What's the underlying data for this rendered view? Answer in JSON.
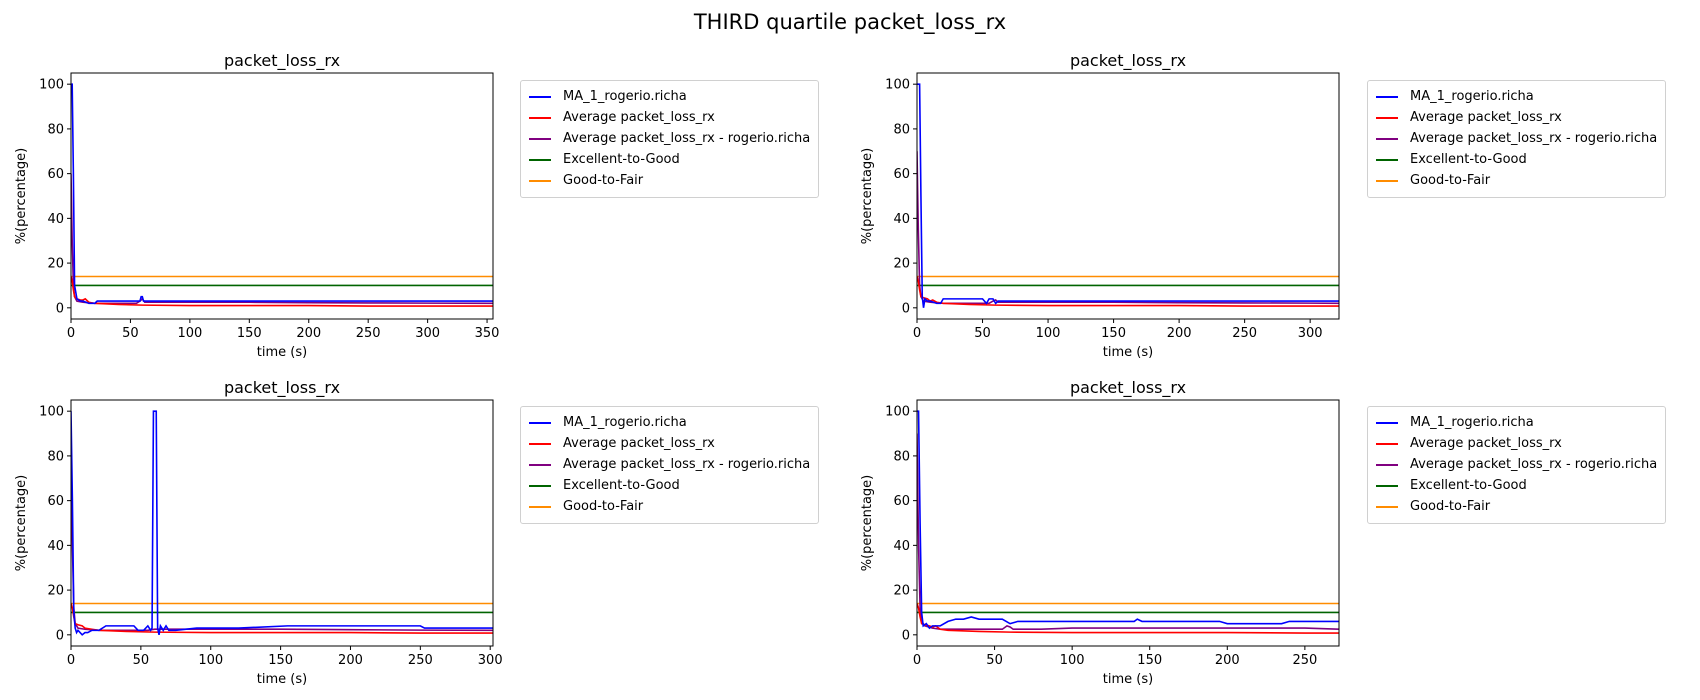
{
  "suptitle": "THIRD quartile packet_loss_rx",
  "legend_entries": [
    {
      "label": "MA_1_rogerio.richa",
      "color": "#0000ff"
    },
    {
      "label": "Average packet_loss_rx",
      "color": "#ff0000"
    },
    {
      "label": "Average packet_loss_rx - rogerio.richa",
      "color": "#800080"
    },
    {
      "label": "Excellent-to-Good",
      "color": "#006400"
    },
    {
      "label": "Good-to-Fair",
      "color": "#ff8c00"
    }
  ],
  "chart_data": [
    {
      "type": "line",
      "title": "packet_loss_rx",
      "xlabel": "time (s)",
      "ylabel": "%(percentage)",
      "xlim": [
        0,
        355
      ],
      "ylim": [
        -5,
        105
      ],
      "xticks": [
        0,
        50,
        100,
        150,
        200,
        250,
        300,
        350
      ],
      "yticks": [
        0,
        20,
        40,
        60,
        80,
        100
      ],
      "grid": false,
      "legend_placement": "outside-right",
      "series": [
        {
          "name": "MA_1_rogerio.richa",
          "color": "#0000ff",
          "x": [
            0,
            1,
            2,
            3,
            5,
            8,
            10,
            15,
            20,
            22,
            30,
            50,
            58,
            59,
            60,
            61,
            63,
            100,
            150,
            200,
            250,
            300,
            355
          ],
          "y": [
            100,
            100,
            60,
            10,
            4,
            3,
            3,
            2,
            2,
            3,
            3,
            3,
            3,
            5,
            5,
            3,
            3,
            3,
            3,
            3,
            3,
            3,
            3
          ]
        },
        {
          "name": "Average packet_loss_rx",
          "color": "#ff0000",
          "x": [
            0,
            1,
            2,
            3,
            5,
            8,
            10,
            12,
            15,
            20,
            40,
            60,
            100,
            150,
            200,
            250,
            300,
            355
          ],
          "y": [
            14,
            12,
            8,
            5,
            4,
            3.5,
            3.5,
            4,
            2.5,
            2,
            1.5,
            1.2,
            1,
            1,
            1,
            0.8,
            0.8,
            0.8
          ]
        },
        {
          "name": "Average packet_loss_rx - rogerio.richa",
          "color": "#800080",
          "x": [
            0,
            1,
            2,
            3,
            5,
            10,
            20,
            40,
            55,
            58,
            60,
            62,
            80,
            100,
            150,
            200,
            250,
            300,
            355
          ],
          "y": [
            60,
            30,
            10,
            5,
            3,
            2.5,
            2,
            2,
            2,
            3,
            4,
            2.5,
            2.5,
            2.5,
            2.5,
            2.3,
            2.2,
            2.1,
            2
          ]
        }
      ],
      "thresholds": [
        {
          "name": "Excellent-to-Good",
          "color": "#006400",
          "y": 10
        },
        {
          "name": "Good-to-Fair",
          "color": "#ff8c00",
          "y": 14
        }
      ]
    },
    {
      "type": "line",
      "title": "packet_loss_rx",
      "xlabel": "time (s)",
      "ylabel": "%(percentage)",
      "xlim": [
        0,
        322
      ],
      "ylim": [
        -5,
        105
      ],
      "xticks": [
        0,
        50,
        100,
        150,
        200,
        250,
        300
      ],
      "yticks": [
        0,
        20,
        40,
        60,
        80,
        100
      ],
      "grid": false,
      "legend_placement": "outside-right",
      "series": [
        {
          "name": "MA_1_rogerio.richa",
          "color": "#0000ff",
          "x": [
            0,
            2,
            3,
            4,
            5,
            6,
            8,
            10,
            15,
            18,
            20,
            50,
            53,
            55,
            58,
            60,
            62,
            100,
            150,
            200,
            250,
            300,
            322
          ],
          "y": [
            100,
            100,
            50,
            5,
            0,
            4,
            3,
            3,
            2,
            2,
            4,
            4,
            2,
            4,
            4,
            2,
            3,
            3,
            3,
            3,
            3,
            3,
            3
          ]
        },
        {
          "name": "Average packet_loss_rx",
          "color": "#ff0000",
          "x": [
            0,
            1,
            2,
            3,
            5,
            8,
            10,
            12,
            15,
            20,
            40,
            60,
            100,
            150,
            200,
            250,
            300,
            322
          ],
          "y": [
            14,
            12,
            8,
            5,
            4.5,
            4,
            3,
            3.5,
            2.5,
            2,
            1.5,
            1.2,
            1,
            1,
            1,
            0.8,
            0.8,
            0.8
          ]
        },
        {
          "name": "Average packet_loss_rx - rogerio.richa",
          "color": "#800080",
          "x": [
            0,
            1,
            2,
            3,
            5,
            10,
            20,
            40,
            55,
            58,
            60,
            62,
            80,
            100,
            150,
            200,
            250,
            300,
            322
          ],
          "y": [
            70,
            35,
            10,
            5,
            3,
            2.5,
            2,
            2,
            2,
            3,
            3.5,
            2.5,
            2.5,
            2.5,
            2.5,
            2.3,
            2.2,
            2.1,
            2
          ]
        }
      ],
      "thresholds": [
        {
          "name": "Excellent-to-Good",
          "color": "#006400",
          "y": 10
        },
        {
          "name": "Good-to-Fair",
          "color": "#ff8c00",
          "y": 14
        }
      ]
    },
    {
      "type": "line",
      "title": "packet_loss_rx",
      "xlabel": "time (s)",
      "ylabel": "%(percentage)",
      "xlim": [
        0,
        302
      ],
      "ylim": [
        -5,
        105
      ],
      "xticks": [
        0,
        50,
        100,
        150,
        200,
        250,
        300
      ],
      "yticks": [
        0,
        20,
        40,
        60,
        80,
        100
      ],
      "grid": false,
      "legend_placement": "outside-right",
      "series": [
        {
          "name": "MA_1_rogerio.richa",
          "color": "#0000ff",
          "x": [
            0,
            1,
            2,
            3,
            4,
            5,
            8,
            10,
            12,
            15,
            20,
            25,
            45,
            48,
            52,
            55,
            57,
            58,
            59,
            61,
            62,
            63,
            64,
            66,
            68,
            70,
            75,
            90,
            100,
            120,
            155,
            200,
            250,
            253,
            260,
            302
          ],
          "y": [
            100,
            60,
            10,
            3,
            1,
            2,
            0,
            1,
            1,
            2,
            2,
            4,
            4,
            2,
            2,
            4,
            2,
            3,
            100,
            100,
            3,
            0,
            4,
            2,
            4,
            2,
            2,
            3,
            3,
            3,
            4,
            4,
            4,
            3,
            3,
            3
          ]
        },
        {
          "name": "Average packet_loss_rx",
          "color": "#ff0000",
          "x": [
            0,
            1,
            2,
            3,
            5,
            8,
            10,
            15,
            20,
            40,
            60,
            100,
            150,
            200,
            250,
            302
          ],
          "y": [
            14,
            12,
            8,
            5,
            4.5,
            4,
            3,
            2.5,
            2,
            1.5,
            1.2,
            1,
            1,
            1,
            0.8,
            0.8
          ]
        },
        {
          "name": "Average packet_loss_rx - rogerio.richa",
          "color": "#800080",
          "x": [
            0,
            1,
            2,
            3,
            5,
            10,
            20,
            40,
            55,
            60,
            62,
            70,
            100,
            150,
            200,
            250,
            302
          ],
          "y": [
            80,
            40,
            12,
            5,
            3,
            2.5,
            2,
            2,
            2,
            2.5,
            2.5,
            2.5,
            2.5,
            2.5,
            2.3,
            2.1,
            2
          ]
        }
      ],
      "thresholds": [
        {
          "name": "Excellent-to-Good",
          "color": "#006400",
          "y": 10
        },
        {
          "name": "Good-to-Fair",
          "color": "#ff8c00",
          "y": 14
        }
      ]
    },
    {
      "type": "line",
      "title": "packet_loss_rx",
      "xlabel": "time (s)",
      "ylabel": "%(percentage)",
      "xlim": [
        0,
        272
      ],
      "ylim": [
        -5,
        105
      ],
      "xticks": [
        0,
        50,
        100,
        150,
        200,
        250
      ],
      "yticks": [
        0,
        20,
        40,
        60,
        80,
        100
      ],
      "grid": false,
      "legend_placement": "outside-right",
      "series": [
        {
          "name": "MA_1_rogerio.richa",
          "color": "#0000ff",
          "x": [
            0,
            1,
            2,
            3,
            4,
            6,
            8,
            10,
            12,
            15,
            20,
            25,
            30,
            35,
            40,
            55,
            60,
            65,
            100,
            140,
            142,
            145,
            150,
            195,
            200,
            235,
            240,
            272
          ],
          "y": [
            100,
            100,
            50,
            10,
            4,
            5,
            3,
            4,
            4,
            4,
            6,
            7,
            7,
            8,
            7,
            7,
            5,
            6,
            6,
            6,
            7,
            6,
            6,
            6,
            5,
            5,
            6,
            6
          ]
        },
        {
          "name": "Average packet_loss_rx",
          "color": "#ff0000",
          "x": [
            0,
            1,
            2,
            3,
            5,
            8,
            10,
            12,
            15,
            20,
            40,
            60,
            100,
            150,
            200,
            250,
            272
          ],
          "y": [
            14,
            12,
            8,
            5,
            4.5,
            4,
            3.5,
            4,
            2.5,
            2,
            1.5,
            1.2,
            1,
            1,
            1,
            0.8,
            0.8
          ]
        },
        {
          "name": "Average packet_loss_rx - rogerio.richa",
          "color": "#800080",
          "x": [
            0,
            1,
            2,
            3,
            5,
            10,
            15,
            20,
            30,
            40,
            55,
            58,
            60,
            62,
            80,
            100,
            150,
            200,
            250,
            272
          ],
          "y": [
            90,
            40,
            12,
            6,
            4,
            3,
            2.5,
            2.5,
            2.5,
            2.5,
            2.5,
            4,
            3.5,
            2.5,
            2.5,
            3,
            3,
            3,
            3,
            2.5
          ]
        }
      ],
      "thresholds": [
        {
          "name": "Excellent-to-Good",
          "color": "#006400",
          "y": 10
        },
        {
          "name": "Good-to-Fair",
          "color": "#ff8c00",
          "y": 14
        }
      ]
    }
  ]
}
